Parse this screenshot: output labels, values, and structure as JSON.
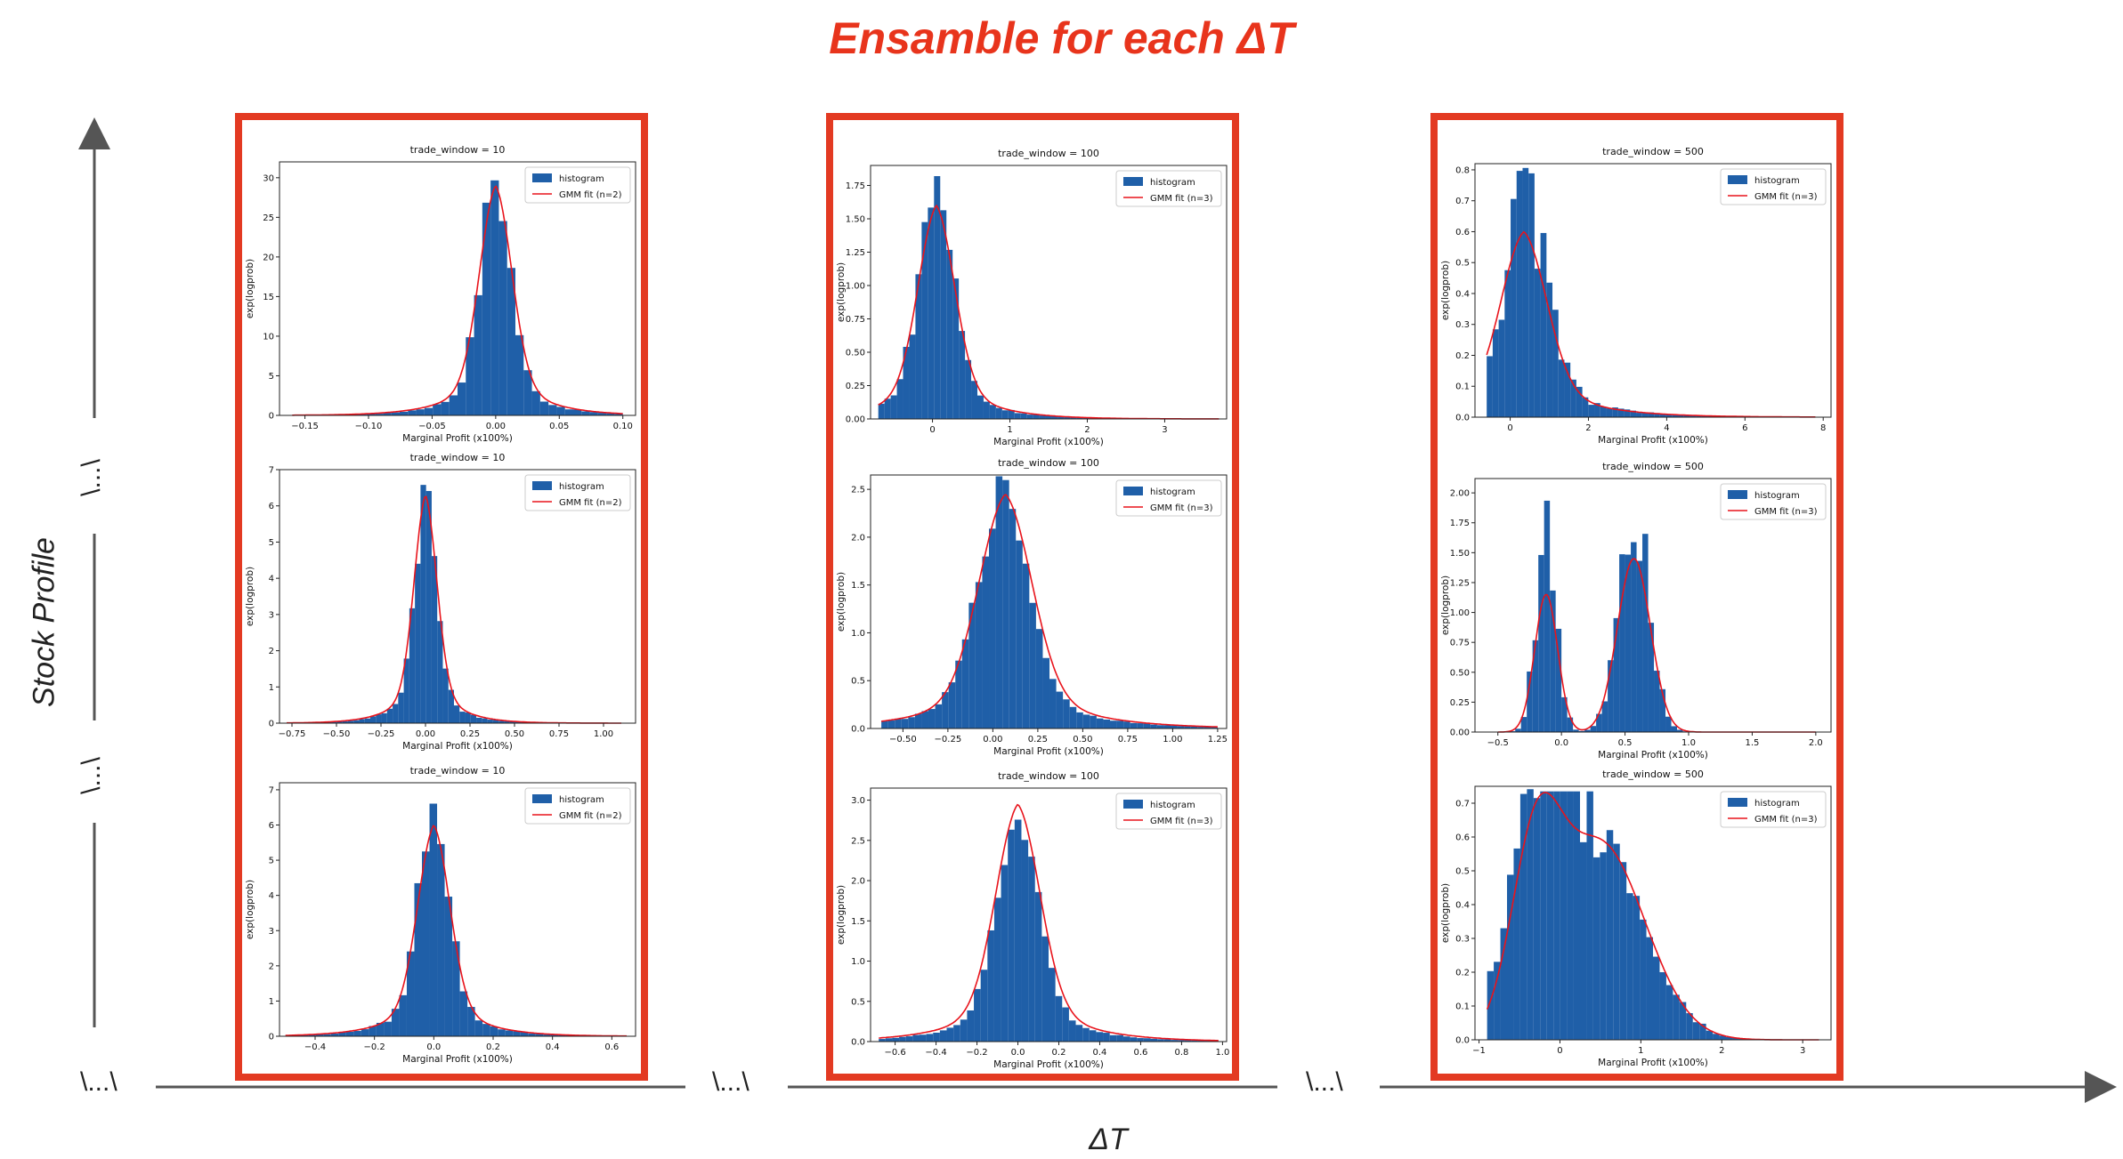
{
  "title": "Ensamble for each ΔT",
  "y_axis_label": "Stock Profile",
  "x_axis_label": "ΔT",
  "ellipsis": "\\...\\",
  "colors": {
    "accent": "#e8341c",
    "bar": "#1f5fa8",
    "fit": "#e8141c",
    "axis": "#555555"
  },
  "chart_data": [
    {
      "type": "bar",
      "title": "trade_window = 10",
      "xlabel": "Marginal Profit (x100%)",
      "ylabel": "exp(logprob)",
      "xlim": [
        -0.17,
        0.11
      ],
      "ylim": [
        0,
        32
      ],
      "xticks": [
        -0.15,
        -0.1,
        -0.05,
        0.0,
        0.05,
        0.1
      ],
      "xticklabels": [
        "−0.15",
        "−0.10",
        "−0.05",
        "0.00",
        "0.05",
        "0.10"
      ],
      "yticks": [
        0,
        5,
        10,
        15,
        20,
        25,
        30
      ],
      "legend": [
        "histogram",
        "GMM fit (n=2)"
      ],
      "legend_loc": "upper right",
      "series": [
        {
          "kind": "hist",
          "center": 0.0,
          "sigma": 0.012,
          "peak": 30.5,
          "tail": 0.03,
          "xmin": -0.16,
          "xmax": 0.1,
          "bins": 40,
          "noise": 0.12
        },
        {
          "kind": "fit",
          "center": 0.0,
          "sigma": 0.013,
          "peak": 29.0,
          "tail": 0.03
        }
      ]
    },
    {
      "type": "bar",
      "title": "trade_window = 10",
      "xlabel": "Marginal Profit (x100%)",
      "ylabel": "exp(logprob)",
      "xlim": [
        -0.82,
        1.18
      ],
      "ylim": [
        0,
        7
      ],
      "xticks": [
        -0.75,
        -0.5,
        -0.25,
        0.0,
        0.25,
        0.5,
        0.75,
        1.0
      ],
      "xticklabels": [
        "−0.75",
        "−0.50",
        "−0.25",
        "0.00",
        "0.25",
        "0.50",
        "0.75",
        "1.00"
      ],
      "yticks": [
        0,
        1,
        2,
        3,
        4,
        5,
        6,
        7
      ],
      "legend": [
        "histogram",
        "GMM fit (n=2)"
      ],
      "legend_loc": "upper right",
      "series": [
        {
          "kind": "hist",
          "center": 0.0,
          "sigma": 0.06,
          "peak": 6.6,
          "tail": 0.15,
          "xmin": -0.78,
          "xmax": 1.1,
          "bins": 60,
          "noise": 0.12
        },
        {
          "kind": "fit",
          "center": 0.0,
          "sigma": 0.065,
          "peak": 6.3,
          "tail": 0.15
        }
      ]
    },
    {
      "type": "bar",
      "title": "trade_window = 10",
      "xlabel": "Marginal Profit (x100%)",
      "ylabel": "exp(logprob)",
      "xlim": [
        -0.52,
        0.68
      ],
      "ylim": [
        0,
        7.2
      ],
      "xticks": [
        -0.4,
        -0.2,
        0.0,
        0.2,
        0.4,
        0.6
      ],
      "xticklabels": [
        "−0.4",
        "−0.2",
        "0.0",
        "0.2",
        "0.4",
        "0.6"
      ],
      "yticks": [
        0,
        1,
        2,
        3,
        4,
        5,
        6,
        7
      ],
      "legend": [
        "histogram",
        "GMM fit (n=2)"
      ],
      "legend_loc": "upper right",
      "series": [
        {
          "kind": "hist",
          "center": 0.0,
          "sigma": 0.05,
          "peak": 6.9,
          "tail": 0.12,
          "xmin": -0.5,
          "xmax": 0.65,
          "bins": 45,
          "noise": 0.12
        },
        {
          "kind": "fit",
          "center": 0.0,
          "sigma": 0.055,
          "peak": 6.0,
          "tail": 0.12
        }
      ]
    },
    {
      "type": "bar",
      "title": "trade_window = 100",
      "xlabel": "Marginal Profit (x100%)",
      "ylabel": "exp(logprob)",
      "xlim": [
        -0.8,
        3.8
      ],
      "ylim": [
        0,
        1.9
      ],
      "xticks": [
        0,
        1,
        2,
        3
      ],
      "xticklabels": [
        "0",
        "1",
        "2",
        "3"
      ],
      "yticks": [
        0,
        0.25,
        0.5,
        0.75,
        1.0,
        1.25,
        1.5,
        1.75
      ],
      "yticklabels": [
        "0.00",
        "0.25",
        "0.50",
        "0.75",
        "1.00",
        "1.25",
        "1.50",
        "1.75"
      ],
      "legend": [
        "histogram",
        "GMM fit (n=3)"
      ],
      "legend_loc": "upper right",
      "series": [
        {
          "kind": "hist",
          "center": 0.05,
          "sigma": 0.22,
          "peak": 1.8,
          "tail": 0.4,
          "xmin": -0.7,
          "xmax": 3.7,
          "bins": 55,
          "noise": 0.15
        },
        {
          "kind": "fit",
          "center": 0.05,
          "sigma": 0.24,
          "peak": 1.6,
          "tail": 0.4
        }
      ]
    },
    {
      "type": "bar",
      "title": "trade_window = 100",
      "xlabel": "Marginal Profit (x100%)",
      "ylabel": "exp(logprob)",
      "xlim": [
        -0.68,
        1.3
      ],
      "ylim": [
        0,
        2.65
      ],
      "xticks": [
        -0.5,
        -0.25,
        0.0,
        0.25,
        0.5,
        0.75,
        1.0,
        1.25
      ],
      "xticklabels": [
        "−0.50",
        "−0.25",
        "0.00",
        "0.25",
        "0.50",
        "0.75",
        "1.00",
        "1.25"
      ],
      "yticks": [
        0,
        0.5,
        1.0,
        1.5,
        2.0,
        2.5
      ],
      "yticklabels": [
        "0.0",
        "0.5",
        "1.0",
        "1.5",
        "2.0",
        "2.5"
      ],
      "legend": [
        "histogram",
        "GMM fit (n=3)"
      ],
      "legend_loc": "upper right",
      "series": [
        {
          "kind": "hist",
          "center": 0.06,
          "sigma": 0.14,
          "peak": 2.55,
          "tail": 0.35,
          "xmin": -0.62,
          "xmax": 1.25,
          "bins": 50,
          "noise": 0.08
        },
        {
          "kind": "fit",
          "center": 0.07,
          "sigma": 0.15,
          "peak": 2.45,
          "tail": 0.35
        }
      ]
    },
    {
      "type": "bar",
      "title": "trade_window = 100",
      "xlabel": "Marginal Profit (x100%)",
      "ylabel": "exp(logprob)",
      "xlim": [
        -0.72,
        1.02
      ],
      "ylim": [
        0,
        3.15
      ],
      "xticks": [
        -0.6,
        -0.4,
        -0.2,
        0.0,
        0.2,
        0.4,
        0.6,
        0.8,
        1.0
      ],
      "xticklabels": [
        "−0.6",
        "−0.4",
        "−0.2",
        "0.0",
        "0.2",
        "0.4",
        "0.6",
        "0.8",
        "1.0"
      ],
      "yticks": [
        0,
        0.5,
        1.0,
        1.5,
        2.0,
        2.5,
        3.0
      ],
      "yticklabels": [
        "0.0",
        "0.5",
        "1.0",
        "1.5",
        "2.0",
        "2.5",
        "3.0"
      ],
      "legend": [
        "histogram",
        "GMM fit (n=3)"
      ],
      "legend_loc": "upper right",
      "series": [
        {
          "kind": "hist",
          "center": 0.0,
          "sigma": 0.1,
          "peak": 2.9,
          "tail": 0.25,
          "xmin": -0.68,
          "xmax": 0.98,
          "bins": 50,
          "noise": 0.1
        },
        {
          "kind": "fit",
          "center": 0.0,
          "sigma": 0.11,
          "peak": 2.95,
          "tail": 0.25
        }
      ]
    },
    {
      "type": "bar",
      "title": "trade_window = 500",
      "xlabel": "Marginal Profit (x100%)",
      "ylabel": "exp(logprob)",
      "xlim": [
        -0.9,
        8.2
      ],
      "ylim": [
        0,
        0.82
      ],
      "xticks": [
        0,
        2,
        4,
        6,
        8
      ],
      "xticklabels": [
        "0",
        "2",
        "4",
        "6",
        "8"
      ],
      "yticks": [
        0,
        0.1,
        0.2,
        0.3,
        0.4,
        0.5,
        0.6,
        0.7,
        0.8
      ],
      "yticklabels": [
        "0.0",
        "0.1",
        "0.2",
        "0.3",
        "0.4",
        "0.5",
        "0.6",
        "0.7",
        "0.8"
      ],
      "legend": [
        "histogram",
        "GMM fit (n=3)"
      ],
      "legend_loc": "upper right",
      "series": [
        {
          "kind": "hist",
          "center": 0.4,
          "sigma": 0.55,
          "peak": 0.72,
          "tail": 0.5,
          "xmin": -0.6,
          "xmax": 7.8,
          "bins": 55,
          "noise": 0.22
        },
        {
          "kind": "fit",
          "center": 0.35,
          "sigma": 0.6,
          "peak": 0.6,
          "tail": 0.5
        }
      ]
    },
    {
      "type": "bar",
      "title": "trade_window = 500",
      "xlabel": "Marginal Profit (x100%)",
      "ylabel": "exp(logprob)",
      "xlim": [
        -0.68,
        2.12
      ],
      "ylim": [
        0,
        2.12
      ],
      "xticks": [
        -0.5,
        0.0,
        0.5,
        1.0,
        1.5,
        2.0
      ],
      "xticklabels": [
        "−0.5",
        "0.0",
        "0.5",
        "1.0",
        "1.5",
        "2.0"
      ],
      "yticks": [
        0,
        0.25,
        0.5,
        0.75,
        1.0,
        1.25,
        1.5,
        1.75,
        2.0
      ],
      "yticklabels": [
        "0.00",
        "0.25",
        "0.50",
        "0.75",
        "1.00",
        "1.25",
        "1.50",
        "1.75",
        "2.00"
      ],
      "legend": [
        "histogram",
        "GMM fit (n=3)"
      ],
      "legend_loc": "upper right",
      "series": [
        {
          "kind": "hist2",
          "c1": -0.12,
          "s1": 0.08,
          "p1": 1.6,
          "c2": 0.57,
          "s2": 0.12,
          "p2": 2.0,
          "xmin": -0.5,
          "xmax": 2.0,
          "bins": 55,
          "noise": 0.25
        },
        {
          "kind": "fit2",
          "c1": -0.12,
          "s1": 0.09,
          "p1": 1.15,
          "c2": 0.57,
          "s2": 0.13,
          "p2": 1.45
        }
      ]
    },
    {
      "type": "bar",
      "title": "trade_window = 500",
      "xlabel": "Marginal Profit (x100%)",
      "ylabel": "exp(logprob)",
      "xlim": [
        -1.05,
        3.35
      ],
      "ylim": [
        0,
        0.75
      ],
      "xticks": [
        -1,
        0,
        1,
        2,
        3
      ],
      "xticklabels": [
        "−1",
        "0",
        "1",
        "2",
        "3"
      ],
      "yticks": [
        0,
        0.1,
        0.2,
        0.3,
        0.4,
        0.5,
        0.6,
        0.7
      ],
      "yticklabels": [
        "0.0",
        "0.1",
        "0.2",
        "0.3",
        "0.4",
        "0.5",
        "0.6",
        "0.7"
      ],
      "legend": [
        "histogram",
        "GMM fit (n=3)"
      ],
      "legend_loc": "upper right",
      "series": [
        {
          "kind": "hist2",
          "c1": -0.3,
          "s1": 0.35,
          "p1": 0.55,
          "c2": 0.5,
          "s2": 0.55,
          "p2": 0.62,
          "xmin": -0.9,
          "xmax": 3.2,
          "bins": 50,
          "noise": 0.2
        },
        {
          "kind": "fit2",
          "c1": -0.3,
          "s1": 0.3,
          "p1": 0.5,
          "c2": 0.5,
          "s2": 0.55,
          "p2": 0.58
        }
      ]
    }
  ]
}
